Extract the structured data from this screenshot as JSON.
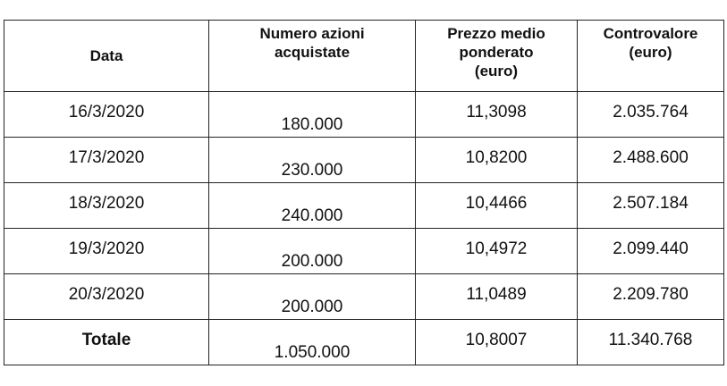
{
  "table": {
    "headers": [
      "Data",
      "Numero azioni\nacquistate",
      "Prezzo medio\nponderato\n(euro)",
      "Controvalore\n(euro)"
    ],
    "rows": [
      {
        "date": "16/3/2020",
        "shares": "180.000",
        "price": "11,3098",
        "value": "2.035.764"
      },
      {
        "date": "17/3/2020",
        "shares": "230.000",
        "price": "10,8200",
        "value": "2.488.600"
      },
      {
        "date": "18/3/2020",
        "shares": "240.000",
        "price": "10,4466",
        "value": "2.507.184"
      },
      {
        "date": "19/3/2020",
        "shares": "200.000",
        "price": "10,4972",
        "value": "2.099.440"
      },
      {
        "date": "20/3/2020",
        "shares": "200.000",
        "price": "11,0489",
        "value": "2.209.780"
      }
    ],
    "total": {
      "label": "Totale",
      "shares": "1.050.000",
      "price": "10,8007",
      "value": "11.340.768"
    }
  }
}
